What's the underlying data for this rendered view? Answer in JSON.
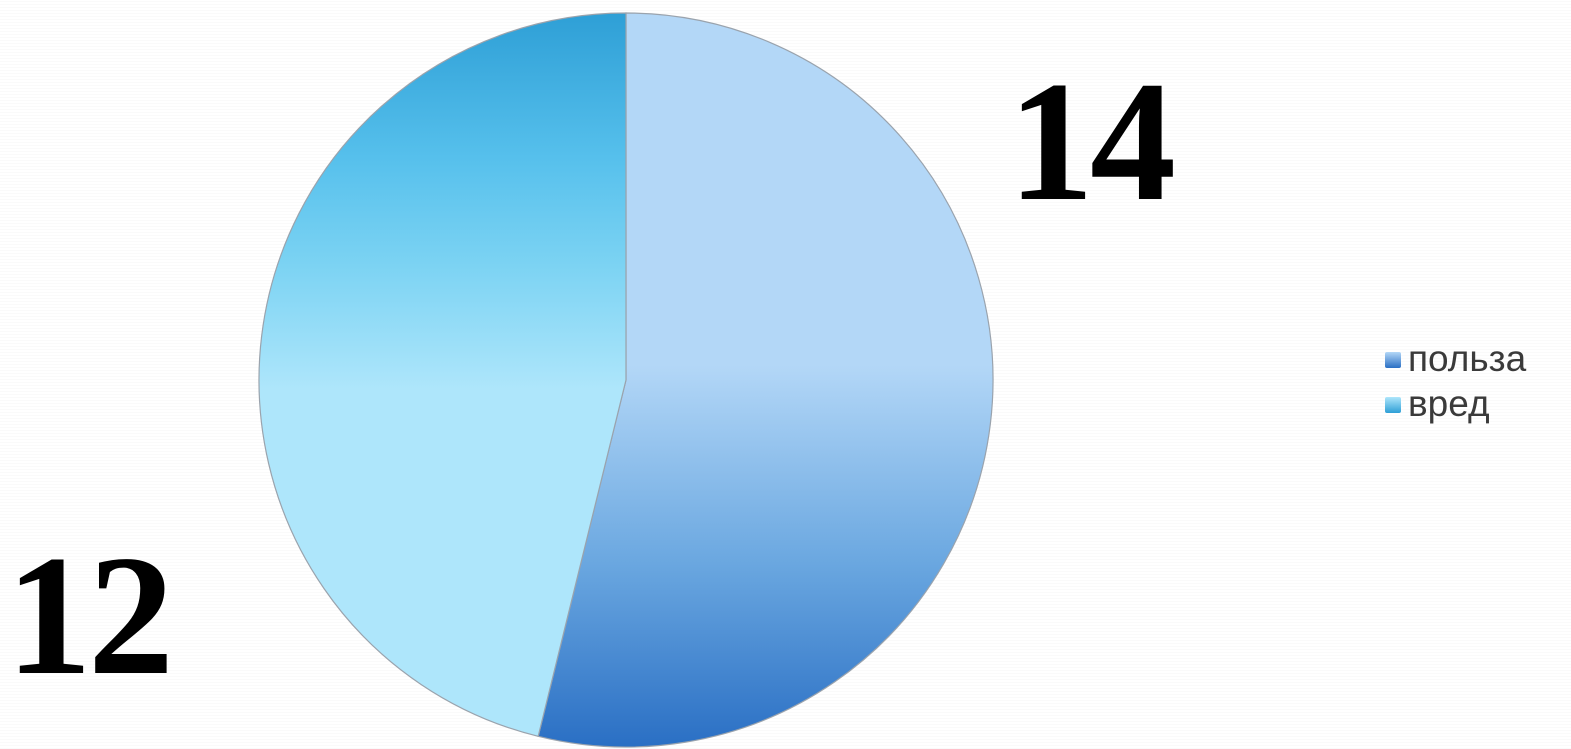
{
  "chart_data": {
    "type": "pie",
    "categories": [
      "польза",
      "вред"
    ],
    "values": [
      14,
      12
    ],
    "data_labels": [
      "14",
      "12"
    ],
    "legend_position": "right",
    "colors": {
      "польза": {
        "light": "#b3d7f7",
        "dark": "#2a6fc4"
      },
      "вред": {
        "light": "#aee6fb",
        "dark": "#2e9fd6"
      }
    }
  }
}
